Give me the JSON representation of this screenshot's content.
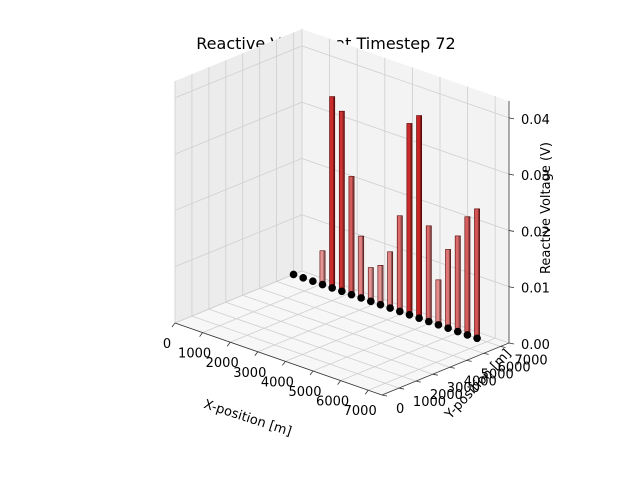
{
  "chart_data": {
    "type": "bar3d",
    "title": "Reactive Voltage at Timestep 72",
    "xlabel": "X-position [m]",
    "ylabel": "Y-position [m]",
    "zlabel": "Reactive Voltage (V)",
    "xlim": [
      0,
      7500
    ],
    "ylim": [
      0,
      7500
    ],
    "zlim": [
      0,
      0.043
    ],
    "xticks": [
      "0",
      "1000",
      "2000",
      "3000",
      "4000",
      "5000",
      "6000",
      "7000"
    ],
    "yticks": [
      "0",
      "1000",
      "2000",
      "3000",
      "4000",
      "5000",
      "6000",
      "7000"
    ],
    "zticks": [
      "0.00",
      "0.01",
      "0.02",
      "0.03",
      "0.04"
    ],
    "grid": true,
    "bar_color": "#cc1100",
    "node_color": "#000000",
    "points": [
      {
        "x": 0,
        "y": 7000,
        "z": 0.0
      },
      {
        "x": 350,
        "y": 7000,
        "z": 0.0
      },
      {
        "x": 700,
        "y": 7000,
        "z": 0.0
      },
      {
        "x": 1050,
        "y": 7000,
        "z": 0.006
      },
      {
        "x": 1400,
        "y": 7000,
        "z": 0.034
      },
      {
        "x": 1750,
        "y": 7000,
        "z": 0.032
      },
      {
        "x": 2100,
        "y": 7000,
        "z": 0.021
      },
      {
        "x": 2450,
        "y": 7000,
        "z": 0.011
      },
      {
        "x": 2800,
        "y": 7000,
        "z": 0.006
      },
      {
        "x": 3150,
        "y": 7000,
        "z": 0.007
      },
      {
        "x": 3500,
        "y": 7000,
        "z": 0.01
      },
      {
        "x": 3850,
        "y": 7000,
        "z": 0.017
      },
      {
        "x": 4200,
        "y": 7000,
        "z": 0.034
      },
      {
        "x": 4550,
        "y": 7000,
        "z": 0.036
      },
      {
        "x": 4900,
        "y": 7000,
        "z": 0.017
      },
      {
        "x": 5250,
        "y": 7000,
        "z": 0.008
      },
      {
        "x": 5600,
        "y": 7000,
        "z": 0.014
      },
      {
        "x": 5950,
        "y": 7000,
        "z": 0.017
      },
      {
        "x": 6300,
        "y": 7000,
        "z": 0.021
      },
      {
        "x": 6650,
        "y": 7000,
        "z": 0.023
      }
    ]
  }
}
